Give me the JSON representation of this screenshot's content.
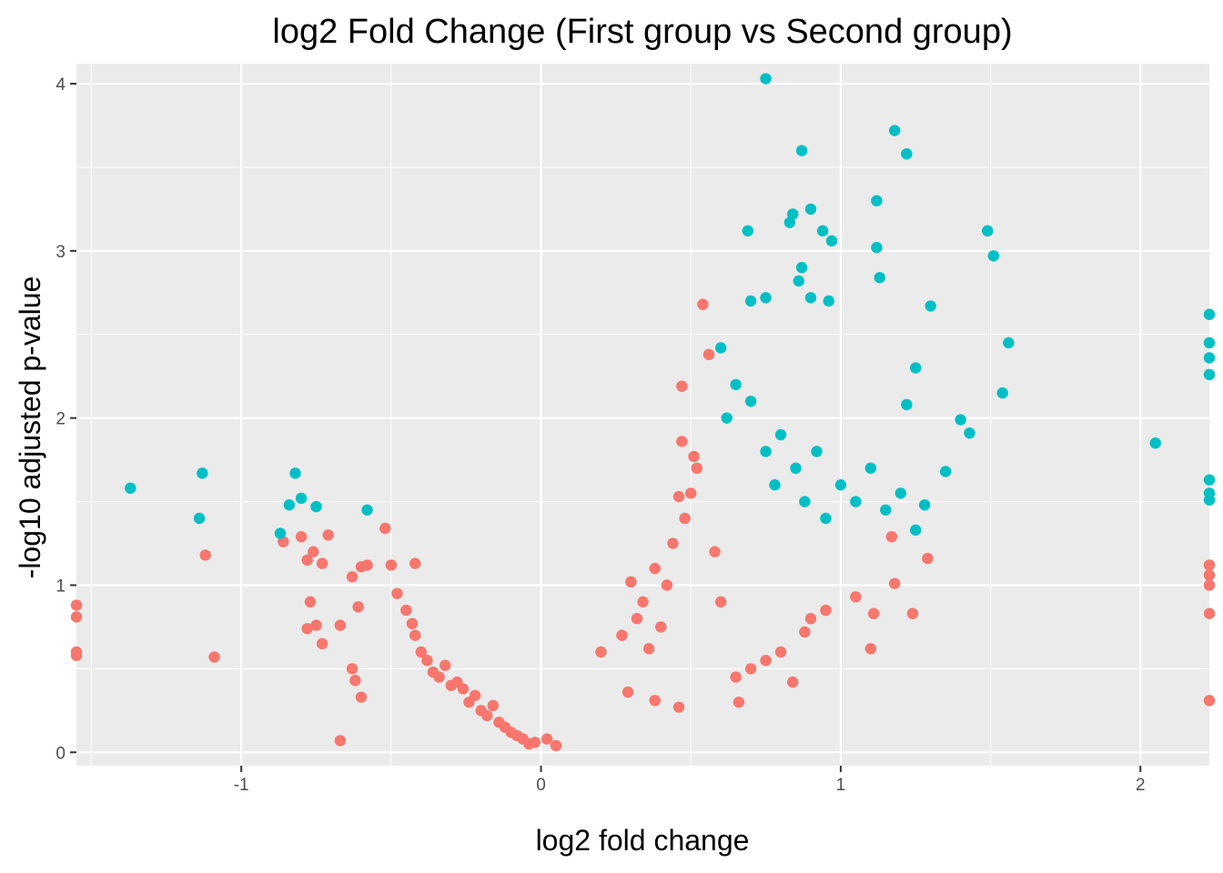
{
  "chart_data": {
    "type": "scatter",
    "title": "log2 Fold Change (First group vs Second group)",
    "xlabel": "log2 fold change",
    "ylabel": "-log10 adjusted p-value",
    "xlim": [
      -1.55,
      2.23
    ],
    "ylim": [
      -0.08,
      4.12
    ],
    "x_ticks": [
      -1,
      0,
      1,
      2
    ],
    "x_tick_labels": [
      "-1",
      "0",
      "1",
      "2"
    ],
    "y_ticks": [
      0,
      1,
      2,
      3,
      4
    ],
    "y_tick_labels": [
      "0",
      "1",
      "2",
      "3",
      "4"
    ],
    "grid": true,
    "legend": "none",
    "colors": {
      "panel": "#ebebeb",
      "grid": "#ffffff",
      "series_0": "#f8766d",
      "series_1": "#00bfc4"
    },
    "series": [
      {
        "color": "#f8766d",
        "points": [
          [
            -1.55,
            0.88
          ],
          [
            -1.55,
            0.81
          ],
          [
            -1.55,
            0.6
          ],
          [
            -1.55,
            0.58
          ],
          [
            -1.12,
            1.18
          ],
          [
            -1.09,
            0.57
          ],
          [
            -0.86,
            1.26
          ],
          [
            -0.8,
            1.29
          ],
          [
            -0.78,
            1.15
          ],
          [
            -0.77,
            0.9
          ],
          [
            -0.78,
            0.74
          ],
          [
            -0.76,
            1.2
          ],
          [
            -0.75,
            0.76
          ],
          [
            -0.73,
            1.13
          ],
          [
            -0.73,
            0.65
          ],
          [
            -0.71,
            1.3
          ],
          [
            -0.67,
            0.07
          ],
          [
            -0.67,
            0.76
          ],
          [
            -0.63,
            1.05
          ],
          [
            -0.63,
            0.5
          ],
          [
            -0.62,
            0.43
          ],
          [
            -0.61,
            0.87
          ],
          [
            -0.6,
            0.33
          ],
          [
            -0.6,
            1.11
          ],
          [
            -0.58,
            1.12
          ],
          [
            -0.52,
            1.34
          ],
          [
            -0.5,
            1.12
          ],
          [
            -0.48,
            0.95
          ],
          [
            -0.45,
            0.85
          ],
          [
            -0.43,
            0.77
          ],
          [
            -0.42,
            0.7
          ],
          [
            -0.42,
            1.13
          ],
          [
            -0.4,
            0.6
          ],
          [
            -0.38,
            0.55
          ],
          [
            -0.36,
            0.48
          ],
          [
            -0.34,
            0.45
          ],
          [
            -0.32,
            0.52
          ],
          [
            -0.3,
            0.4
          ],
          [
            -0.28,
            0.42
          ],
          [
            -0.26,
            0.38
          ],
          [
            -0.24,
            0.3
          ],
          [
            -0.22,
            0.34
          ],
          [
            -0.2,
            0.25
          ],
          [
            -0.18,
            0.22
          ],
          [
            -0.16,
            0.28
          ],
          [
            -0.14,
            0.18
          ],
          [
            -0.12,
            0.15
          ],
          [
            -0.1,
            0.12
          ],
          [
            -0.08,
            0.1
          ],
          [
            -0.06,
            0.08
          ],
          [
            -0.04,
            0.05
          ],
          [
            -0.02,
            0.06
          ],
          [
            0.02,
            0.08
          ],
          [
            0.05,
            0.04
          ],
          [
            0.2,
            0.6
          ],
          [
            0.27,
            0.7
          ],
          [
            0.29,
            0.36
          ],
          [
            0.3,
            1.02
          ],
          [
            0.32,
            0.8
          ],
          [
            0.34,
            0.9
          ],
          [
            0.36,
            0.62
          ],
          [
            0.38,
            1.1
          ],
          [
            0.38,
            0.31
          ],
          [
            0.4,
            0.75
          ],
          [
            0.42,
            1.0
          ],
          [
            0.44,
            1.25
          ],
          [
            0.46,
            1.53
          ],
          [
            0.47,
            1.86
          ],
          [
            0.46,
            0.27
          ],
          [
            0.48,
            1.4
          ],
          [
            0.5,
            1.55
          ],
          [
            0.51,
            1.77
          ],
          [
            0.52,
            1.7
          ],
          [
            0.54,
            2.68
          ],
          [
            0.56,
            2.38
          ],
          [
            0.47,
            2.19
          ],
          [
            0.58,
            1.2
          ],
          [
            0.6,
            0.9
          ],
          [
            0.65,
            0.45
          ],
          [
            0.66,
            0.3
          ],
          [
            0.7,
            0.5
          ],
          [
            0.75,
            0.55
          ],
          [
            0.8,
            0.6
          ],
          [
            0.84,
            0.42
          ],
          [
            0.88,
            0.72
          ],
          [
            0.9,
            0.8
          ],
          [
            0.95,
            0.85
          ],
          [
            1.05,
            0.93
          ],
          [
            1.1,
            0.62
          ],
          [
            1.11,
            0.83
          ],
          [
            1.18,
            1.01
          ],
          [
            1.24,
            0.83
          ],
          [
            1.29,
            1.16
          ],
          [
            1.17,
            1.29
          ],
          [
            2.23,
            1.12
          ],
          [
            2.23,
            1.06
          ],
          [
            2.23,
            1.0
          ],
          [
            2.23,
            0.83
          ],
          [
            2.23,
            0.31
          ]
        ]
      },
      {
        "color": "#00bfc4",
        "points": [
          [
            -1.37,
            1.58
          ],
          [
            -1.13,
            1.67
          ],
          [
            -1.14,
            1.4
          ],
          [
            -0.87,
            1.31
          ],
          [
            -0.84,
            1.48
          ],
          [
            -0.82,
            1.67
          ],
          [
            -0.8,
            1.52
          ],
          [
            -0.75,
            1.47
          ],
          [
            -0.58,
            1.45
          ],
          [
            0.75,
            4.03
          ],
          [
            1.18,
            3.72
          ],
          [
            0.87,
            3.6
          ],
          [
            1.22,
            3.58
          ],
          [
            1.12,
            3.3
          ],
          [
            0.9,
            3.25
          ],
          [
            0.84,
            3.22
          ],
          [
            0.69,
            3.12
          ],
          [
            0.83,
            3.17
          ],
          [
            0.94,
            3.12
          ],
          [
            0.97,
            3.06
          ],
          [
            1.12,
            3.02
          ],
          [
            1.49,
            3.12
          ],
          [
            1.51,
            2.97
          ],
          [
            1.13,
            2.84
          ],
          [
            0.86,
            2.82
          ],
          [
            0.87,
            2.9
          ],
          [
            0.9,
            2.72
          ],
          [
            0.96,
            2.7
          ],
          [
            0.7,
            2.7
          ],
          [
            0.75,
            2.72
          ],
          [
            1.3,
            2.67
          ],
          [
            1.56,
            2.45
          ],
          [
            1.54,
            2.15
          ],
          [
            2.05,
            1.85
          ],
          [
            1.4,
            1.99
          ],
          [
            1.43,
            1.91
          ],
          [
            1.35,
            1.68
          ],
          [
            1.28,
            1.48
          ],
          [
            1.25,
            1.33
          ],
          [
            0.6,
            2.42
          ],
          [
            0.62,
            2.0
          ],
          [
            0.65,
            2.2
          ],
          [
            0.7,
            2.1
          ],
          [
            0.75,
            1.8
          ],
          [
            0.78,
            1.6
          ],
          [
            0.8,
            1.9
          ],
          [
            0.85,
            1.7
          ],
          [
            0.88,
            1.5
          ],
          [
            0.92,
            1.8
          ],
          [
            0.95,
            1.4
          ],
          [
            1.0,
            1.6
          ],
          [
            1.05,
            1.5
          ],
          [
            1.1,
            1.7
          ],
          [
            1.15,
            1.45
          ],
          [
            1.2,
            1.55
          ],
          [
            1.25,
            2.3
          ],
          [
            1.22,
            2.08
          ],
          [
            2.23,
            2.62
          ],
          [
            2.23,
            2.45
          ],
          [
            2.23,
            2.36
          ],
          [
            2.23,
            2.26
          ],
          [
            2.23,
            1.63
          ],
          [
            2.23,
            1.55
          ],
          [
            2.23,
            1.51
          ]
        ]
      }
    ]
  }
}
